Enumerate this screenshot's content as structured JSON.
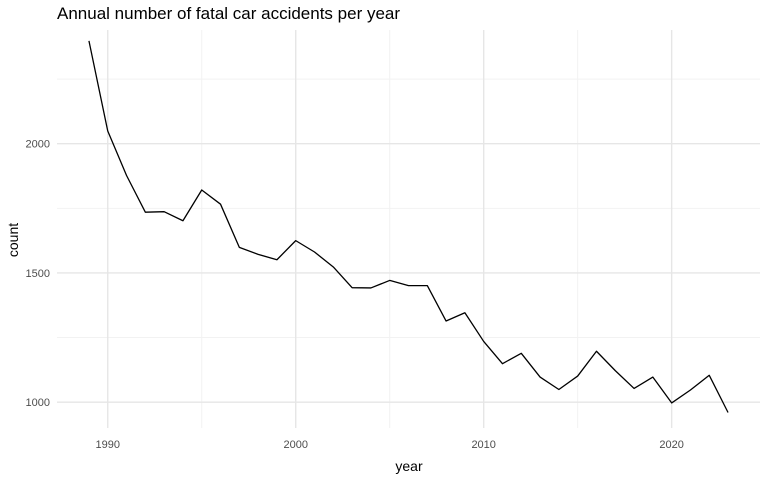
{
  "chart_data": {
    "type": "line",
    "title": "Annual number of fatal car accidents per year",
    "xlabel": "year",
    "ylabel": "count",
    "x_ticks": [
      1990,
      2000,
      2010,
      2020
    ],
    "y_ticks": [
      1000,
      1500,
      2000
    ],
    "xlim": [
      1987.3,
      2024.7
    ],
    "ylim": [
      900,
      2440
    ],
    "grid": true,
    "series": [
      {
        "color": "#000000",
        "x": [
          1989,
          1990,
          1991,
          1992,
          1993,
          1994,
          1995,
          1996,
          1997,
          1998,
          1999,
          2000,
          2001,
          2002,
          2003,
          2004,
          2005,
          2006,
          2007,
          2008,
          2009,
          2010,
          2011,
          2012,
          2013,
          2014,
          2015,
          2016,
          2017,
          2018,
          2019,
          2020,
          2021,
          2022,
          2023
        ],
        "values": [
          2398,
          2049,
          1877,
          1735,
          1737,
          1702,
          1821,
          1766,
          1599,
          1572,
          1551,
          1625,
          1581,
          1523,
          1443,
          1442,
          1471,
          1451,
          1451,
          1314,
          1346,
          1235,
          1149,
          1189,
          1097,
          1049,
          1101,
          1197,
          1122,
          1053,
          1097,
          997,
          1047,
          1104,
          960
        ]
      }
    ]
  }
}
